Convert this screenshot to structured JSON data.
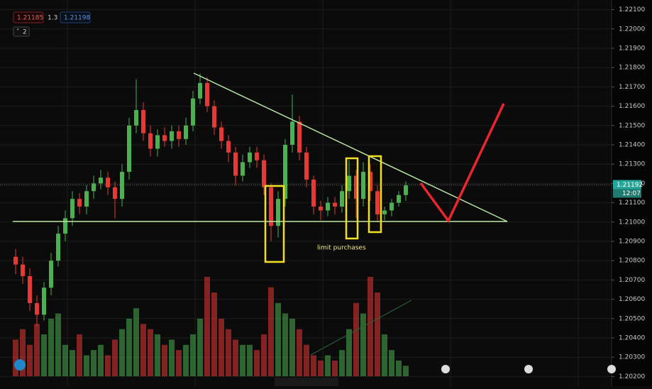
{
  "chart_data": {
    "type": "candlestick",
    "legend_values": [
      "1.21185",
      "1.3",
      "1.21198"
    ],
    "indicator_count": "2",
    "annotation": "limit purchases",
    "last_price": 1.21192,
    "countdown": "12:07",
    "up_color": "#4caf50",
    "down_color": "#e53935",
    "ylim": [
      1.2015,
      1.2215
    ],
    "yticks": [
      {
        "value": 1.221,
        "label": "1.22100"
      },
      {
        "value": 1.22,
        "label": "1.22000"
      },
      {
        "value": 1.219,
        "label": "1.21900"
      },
      {
        "value": 1.218,
        "label": "1.21800"
      },
      {
        "value": 1.217,
        "label": "1.21700"
      },
      {
        "value": 1.216,
        "label": "1.21600"
      },
      {
        "value": 1.215,
        "label": "1.21500"
      },
      {
        "value": 1.214,
        "label": "1.21400"
      },
      {
        "value": 1.213,
        "label": "1.21300"
      },
      {
        "value": 1.212,
        "label": "1.21200"
      },
      {
        "value": 1.211,
        "label": "1.21100"
      },
      {
        "value": 1.21,
        "label": "1.21000"
      },
      {
        "value": 1.209,
        "label": "1.20900"
      },
      {
        "value": 1.208,
        "label": "1.20800"
      },
      {
        "value": 1.207,
        "label": "1.20700"
      },
      {
        "value": 1.206,
        "label": "1.20600"
      },
      {
        "value": 1.205,
        "label": "1.20500"
      },
      {
        "value": 1.204,
        "label": "1.20400"
      },
      {
        "value": 1.203,
        "label": "1.20300"
      },
      {
        "value": 1.202,
        "label": "1.20200"
      }
    ],
    "open": [
      1.2082,
      1.2078,
      1.2072,
      1.2058,
      1.2052,
      1.2066,
      1.208,
      1.2094,
      1.2102,
      1.2112,
      1.2108,
      1.2116,
      1.212,
      1.2123,
      1.2118,
      1.2112,
      1.2126,
      1.215,
      1.2158,
      1.2146,
      1.2138,
      1.2145,
      1.2142,
      1.2147,
      1.2143,
      1.215,
      1.2164,
      1.2172,
      1.216,
      1.2149,
      1.2142,
      1.2136,
      1.2124,
      1.2131,
      1.2136,
      1.2132,
      1.2118,
      1.2098,
      1.2112,
      1.214,
      1.2152,
      1.2136,
      1.2122,
      1.2108,
      1.2106,
      1.211,
      1.2108,
      1.2116,
      1.2124,
      1.2112,
      1.2126,
      1.2116,
      1.2104,
      1.2106,
      1.211,
      1.2114
    ],
    "high": [
      1.2086,
      1.2082,
      1.2076,
      1.2062,
      1.2069,
      1.2084,
      1.2098,
      1.2106,
      1.2116,
      1.2115,
      1.2119,
      1.2124,
      1.2127,
      1.2126,
      1.2121,
      1.213,
      1.2154,
      1.2174,
      1.2162,
      1.215,
      1.2148,
      1.2149,
      1.215,
      1.215,
      1.2154,
      1.2168,
      1.2177,
      1.2175,
      1.2163,
      1.2152,
      1.2145,
      1.2139,
      1.2135,
      1.2139,
      1.2139,
      1.2135,
      1.212,
      1.2116,
      1.2143,
      1.2166,
      1.2155,
      1.2139,
      1.2124,
      1.2111,
      1.2113,
      1.2113,
      1.2119,
      1.2132,
      1.2127,
      1.2131,
      1.213,
      1.2119,
      1.2108,
      1.2112,
      1.2116,
      1.2121
    ],
    "low": [
      1.2073,
      1.2068,
      1.2054,
      1.2046,
      1.2049,
      1.2062,
      1.2077,
      1.209,
      1.2098,
      1.2104,
      1.2104,
      1.2112,
      1.2117,
      1.2114,
      1.2102,
      1.2108,
      1.2122,
      1.2146,
      1.2142,
      1.2134,
      1.2134,
      1.2139,
      1.2138,
      1.2139,
      1.214,
      1.2147,
      1.2161,
      1.2157,
      1.2145,
      1.2138,
      1.2131,
      1.2119,
      1.2121,
      1.2128,
      1.2128,
      1.2114,
      1.209,
      1.2092,
      1.2108,
      1.2136,
      1.2132,
      1.2118,
      1.2104,
      1.2101,
      1.2103,
      1.2104,
      1.2105,
      1.2112,
      1.2102,
      1.2108,
      1.2111,
      1.21,
      1.2101,
      1.2103,
      1.2108,
      1.2111
    ],
    "close": [
      1.2078,
      1.2072,
      1.2058,
      1.2052,
      1.2066,
      1.208,
      1.2094,
      1.2102,
      1.2112,
      1.2108,
      1.2116,
      1.212,
      1.2123,
      1.2118,
      1.2112,
      1.2126,
      1.215,
      1.2158,
      1.2146,
      1.2138,
      1.2145,
      1.2142,
      1.2147,
      1.2143,
      1.215,
      1.2164,
      1.2172,
      1.216,
      1.2149,
      1.2142,
      1.2136,
      1.2124,
      1.2131,
      1.2136,
      1.2132,
      1.2118,
      1.2098,
      1.2112,
      1.214,
      1.2152,
      1.2136,
      1.2122,
      1.2108,
      1.2106,
      1.211,
      1.2108,
      1.2116,
      1.2124,
      1.2112,
      1.2126,
      1.2116,
      1.2104,
      1.2106,
      1.211,
      1.2114,
      1.2119
    ],
    "volume": [
      35,
      45,
      30,
      50,
      40,
      55,
      60,
      30,
      25,
      40,
      20,
      25,
      30,
      20,
      35,
      45,
      55,
      65,
      50,
      45,
      40,
      30,
      35,
      25,
      30,
      40,
      55,
      95,
      80,
      55,
      45,
      35,
      30,
      30,
      25,
      40,
      85,
      70,
      60,
      55,
      45,
      30,
      20,
      15,
      20,
      15,
      25,
      45,
      70,
      60,
      95,
      80,
      40,
      25,
      15,
      10
    ]
  }
}
